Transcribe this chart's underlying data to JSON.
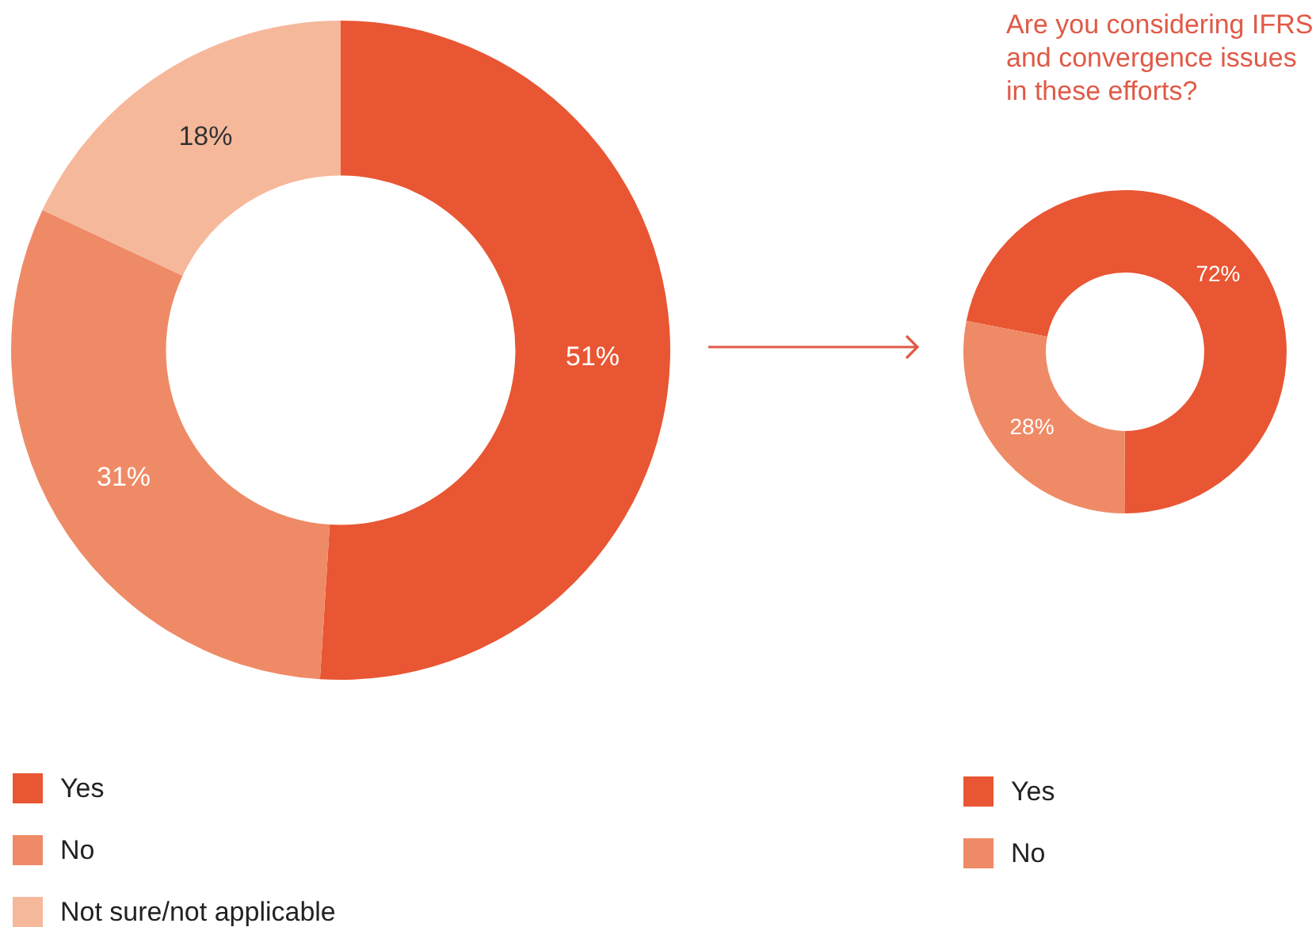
{
  "chart_data": [
    {
      "type": "donut",
      "categories": [
        "Yes",
        "No",
        "Not sure/not applicable"
      ],
      "values": [
        51,
        31,
        18
      ],
      "colors": [
        "#e95633",
        "#ef8a66",
        "#f6b89b"
      ],
      "value_labels": [
        "51%",
        "31%",
        "18%"
      ],
      "legend": "bottom left"
    },
    {
      "type": "donut",
      "title": "Are you considering IFRS and convergence issues in these efforts?",
      "categories": [
        "Yes",
        "No"
      ],
      "values": [
        72,
        28
      ],
      "colors": [
        "#e95633",
        "#ef8a66"
      ],
      "value_labels": [
        "72%",
        "28%"
      ],
      "legend": "bottom left"
    }
  ]
}
